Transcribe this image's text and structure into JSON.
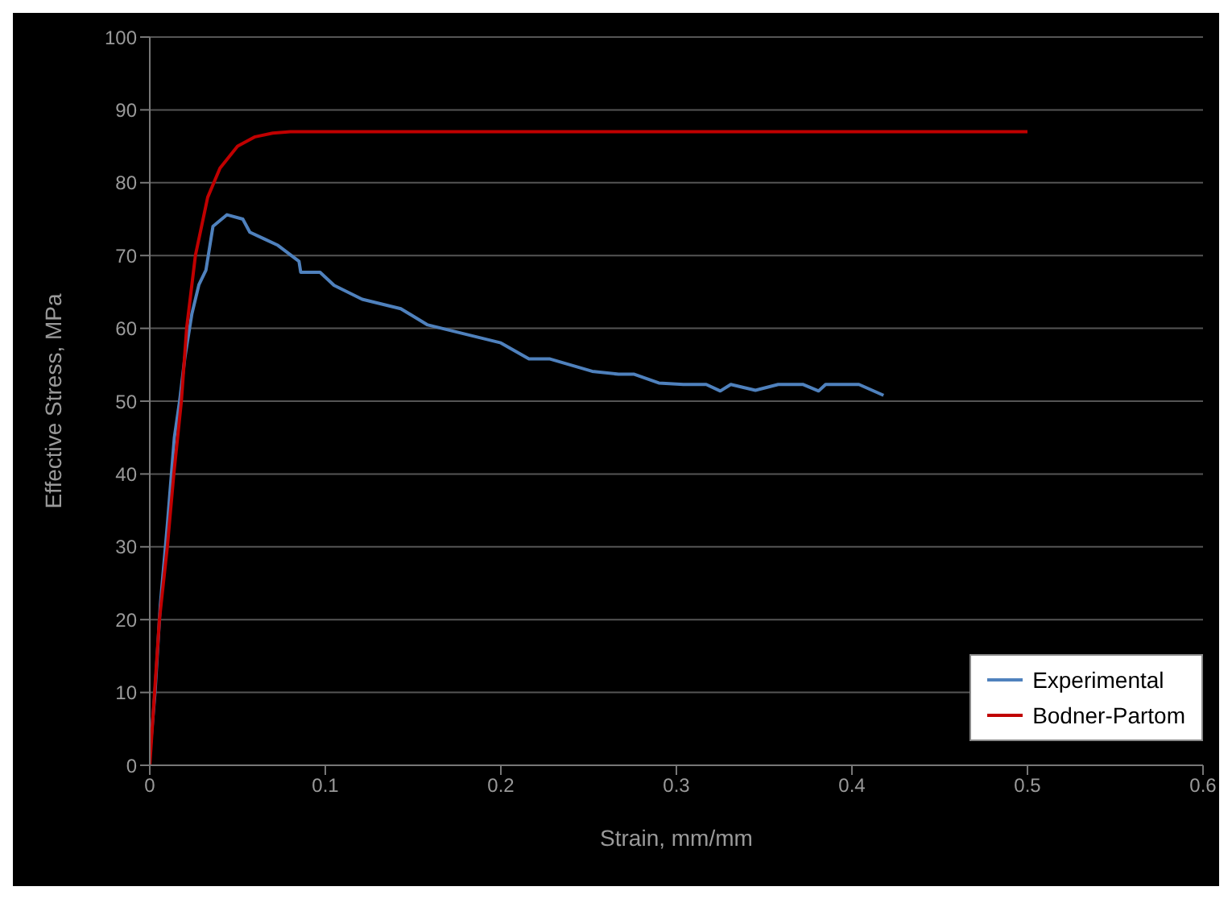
{
  "chart_data": {
    "type": "line",
    "xlabel": "Strain, mm/mm",
    "ylabel": "Effective Stress, MPa",
    "xlim": [
      0,
      0.6
    ],
    "xticks": [
      0,
      0.1,
      0.2,
      0.3,
      0.4,
      0.5,
      0.6
    ],
    "ylim": [
      0,
      100
    ],
    "yticks": [
      0,
      10,
      20,
      30,
      40,
      50,
      60,
      70,
      80,
      90,
      100
    ],
    "grid": "y",
    "legend": "bottom right",
    "marker": "none",
    "line_style": "solid",
    "series": [
      {
        "name": "Experimental",
        "color": "#4f81bd",
        "x": [
          0,
          0.003,
          0.006,
          0.01,
          0.014,
          0.017,
          0.02,
          0.024,
          0.028,
          0.032,
          0.036,
          0.044,
          0.053,
          0.057,
          0.065,
          0.073,
          0.085,
          0.086,
          0.097,
          0.105,
          0.121,
          0.143,
          0.158,
          0.2,
          0.216,
          0.228,
          0.252,
          0.267,
          0.276,
          0.29,
          0.304,
          0.317,
          0.325,
          0.331,
          0.345,
          0.358,
          0.372,
          0.381,
          0.385,
          0.39,
          0.404,
          0.418
        ],
        "values": [
          1.5,
          10,
          22,
          33,
          45,
          50,
          56,
          62,
          66,
          68,
          74,
          75.6,
          75,
          73.2,
          72.3,
          71.4,
          69.2,
          67.7,
          67.7,
          65.9,
          64,
          62.7,
          60.5,
          58,
          55.8,
          55.8,
          54.1,
          53.7,
          53.7,
          52.5,
          52.3,
          52.3,
          51.4,
          52.3,
          51.5,
          52.3,
          52.3,
          51.4,
          52.3,
          52.3,
          52.3,
          50.8
        ]
      },
      {
        "name": "Bodner-Partom",
        "color": "#c00000",
        "x": [
          0,
          0.0055,
          0.01,
          0.0137,
          0.018,
          0.021,
          0.026,
          0.033,
          0.04,
          0.05,
          0.06,
          0.07,
          0.08,
          0.5
        ],
        "values": [
          0,
          20,
          30,
          40,
          50,
          60,
          70,
          78,
          82,
          85,
          86.3,
          86.8,
          87,
          87
        ]
      }
    ]
  }
}
